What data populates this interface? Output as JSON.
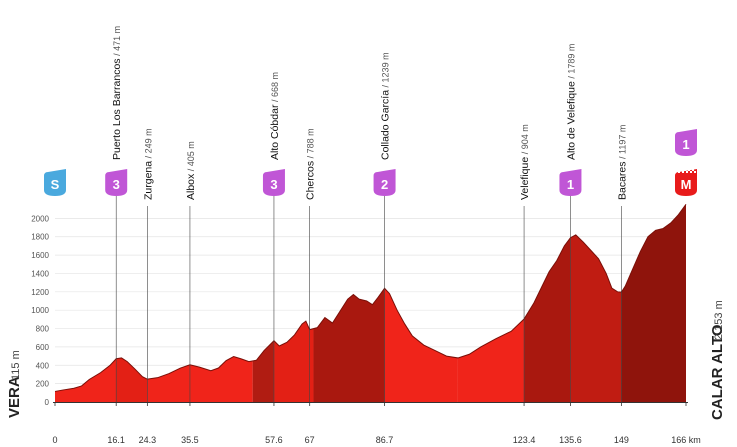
{
  "chart_data": {
    "type": "area",
    "title": "",
    "xlabel": "",
    "ylabel": "",
    "xlim": [
      0,
      166
    ],
    "ylim": [
      0,
      2200
    ],
    "y_ticks": [
      0,
      200,
      400,
      600,
      800,
      1000,
      1200,
      1400,
      1600,
      1800,
      2000
    ],
    "grid": true,
    "x_unit": "km",
    "start": {
      "name": "VERA",
      "alt_label": "115 m"
    },
    "finish": {
      "name": "CALAR ALTO",
      "alt_label": "2.153 m"
    },
    "km_markers": [
      {
        "km": 0,
        "label": "0"
      },
      {
        "km": 16.1,
        "label": "16.1"
      },
      {
        "km": 24.3,
        "label": "24.3"
      },
      {
        "km": 35.5,
        "label": "35.5"
      },
      {
        "km": 57.6,
        "label": "57.6"
      },
      {
        "km": 67,
        "label": "67"
      },
      {
        "km": 86.7,
        "label": "86.7"
      },
      {
        "km": 123.4,
        "label": "123.4"
      },
      {
        "km": 135.6,
        "label": "135.6"
      },
      {
        "km": 149,
        "label": "149"
      },
      {
        "km": 166,
        "label": "166 km"
      }
    ],
    "waypoints": [
      {
        "km": 16.1,
        "name": "Puerto Los Barrancos",
        "alt": "471 m",
        "badge": "3"
      },
      {
        "km": 24.3,
        "name": "Zurgena",
        "alt": "249 m"
      },
      {
        "km": 35.5,
        "name": "Albox",
        "alt": "405 m"
      },
      {
        "km": 57.6,
        "name": "Alto Cóbdar",
        "alt": "668 m",
        "badge": "3"
      },
      {
        "km": 67,
        "name": "Chercos",
        "alt": "788 m"
      },
      {
        "km": 86.7,
        "name": "Collado García",
        "alt": "1239 m",
        "badge": "2"
      },
      {
        "km": 123.4,
        "name": "Velefique",
        "alt": "904 m"
      },
      {
        "km": 135.6,
        "name": "Alto de Velefique",
        "alt": "1789 m",
        "badge": "1"
      },
      {
        "km": 149,
        "name": "Bacares",
        "alt": "1197 m"
      }
    ],
    "badges": [
      {
        "km": 0,
        "text": "S",
        "kind": "sprint"
      },
      {
        "km": 16.1,
        "text": "3",
        "kind": "climb"
      },
      {
        "km": 57.6,
        "text": "3",
        "kind": "climb"
      },
      {
        "km": 86.7,
        "text": "2",
        "kind": "climb"
      },
      {
        "km": 135.6,
        "text": "1",
        "kind": "climb"
      },
      {
        "km": 166,
        "text": "M",
        "kind": "finish"
      },
      {
        "km": 166,
        "text": "1",
        "kind": "finish-climb"
      }
    ],
    "profile": [
      [
        0,
        115
      ],
      [
        2,
        130
      ],
      [
        5,
        150
      ],
      [
        7,
        175
      ],
      [
        9,
        245
      ],
      [
        12,
        320
      ],
      [
        14.5,
        400
      ],
      [
        16.1,
        471
      ],
      [
        17.5,
        480
      ],
      [
        19,
        440
      ],
      [
        21,
        360
      ],
      [
        23,
        275
      ],
      [
        24.3,
        249
      ],
      [
        27,
        265
      ],
      [
        30,
        310
      ],
      [
        33,
        370
      ],
      [
        35.5,
        405
      ],
      [
        38,
        380
      ],
      [
        41,
        340
      ],
      [
        43,
        370
      ],
      [
        45,
        450
      ],
      [
        47,
        495
      ],
      [
        49,
        470
      ],
      [
        51,
        440
      ],
      [
        53,
        455
      ],
      [
        55,
        560
      ],
      [
        57.6,
        668
      ],
      [
        59,
        610
      ],
      [
        61,
        650
      ],
      [
        63,
        730
      ],
      [
        65,
        850
      ],
      [
        66,
        880
      ],
      [
        67,
        788
      ],
      [
        69,
        810
      ],
      [
        71,
        920
      ],
      [
        73,
        860
      ],
      [
        75,
        990
      ],
      [
        77,
        1120
      ],
      [
        78.5,
        1170
      ],
      [
        80,
        1120
      ],
      [
        82,
        1100
      ],
      [
        83.5,
        1060
      ],
      [
        85,
        1140
      ],
      [
        86.7,
        1239
      ],
      [
        88,
        1180
      ],
      [
        90,
        1000
      ],
      [
        92,
        850
      ],
      [
        94,
        720
      ],
      [
        97,
        620
      ],
      [
        100,
        560
      ],
      [
        103,
        500
      ],
      [
        106,
        480
      ],
      [
        109,
        520
      ],
      [
        112,
        600
      ],
      [
        116,
        690
      ],
      [
        120,
        770
      ],
      [
        123.4,
        904
      ],
      [
        126,
        1080
      ],
      [
        128,
        1250
      ],
      [
        130,
        1420
      ],
      [
        132,
        1540
      ],
      [
        134,
        1700
      ],
      [
        135.6,
        1789
      ],
      [
        137,
        1820
      ],
      [
        139,
        1740
      ],
      [
        141,
        1650
      ],
      [
        143,
        1560
      ],
      [
        145,
        1400
      ],
      [
        146.5,
        1240
      ],
      [
        148,
        1200
      ],
      [
        149,
        1197
      ],
      [
        150,
        1260
      ],
      [
        152,
        1450
      ],
      [
        154,
        1640
      ],
      [
        156,
        1800
      ],
      [
        158,
        1870
      ],
      [
        160,
        1890
      ],
      [
        162,
        1950
      ],
      [
        164,
        2040
      ],
      [
        166,
        2153
      ]
    ],
    "segment_colors": [
      {
        "from": 0,
        "to": 16.1,
        "color": "#f0241a"
      },
      {
        "from": 16.1,
        "to": 24.3,
        "color": "#e32015"
      },
      {
        "from": 24.3,
        "to": 52,
        "color": "#f0241a"
      },
      {
        "from": 52,
        "to": 57.6,
        "color": "#b01c12"
      },
      {
        "from": 57.6,
        "to": 68,
        "color": "#e32015"
      },
      {
        "from": 68,
        "to": 86.7,
        "color": "#a9180f"
      },
      {
        "from": 86.7,
        "to": 106,
        "color": "#f0241a"
      },
      {
        "from": 106,
        "to": 123.4,
        "color": "#f0241a"
      },
      {
        "from": 123.4,
        "to": 135.6,
        "color": "#a9180f"
      },
      {
        "from": 135.6,
        "to": 149,
        "color": "#c01c12"
      },
      {
        "from": 149,
        "to": 166,
        "color": "#8f140c"
      }
    ],
    "colors": {
      "climb_badge": "#c056d6",
      "sprint_badge": "#4aa9de",
      "finish_badge": "#e81b1b",
      "outline": "#7a0f08"
    }
  }
}
